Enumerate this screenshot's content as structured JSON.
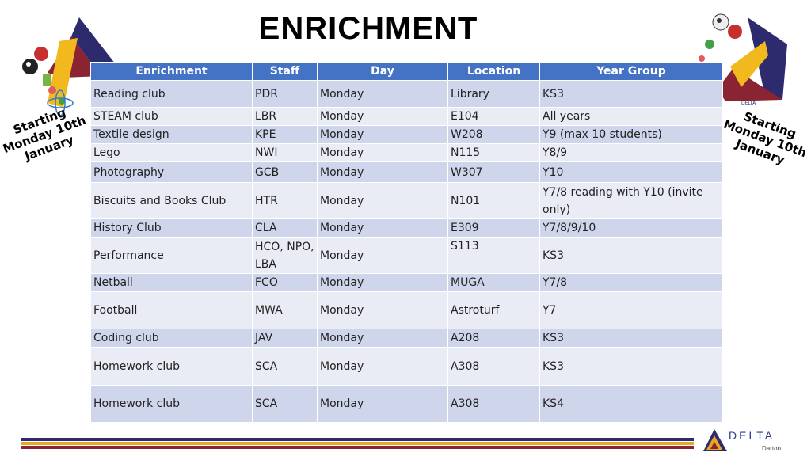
{
  "title": "ENRICHMENT",
  "starting_note": "Starting\nMonday 10th\nJanuary",
  "table": {
    "headers": [
      "Enrichment",
      "Staff",
      "Day",
      "Location",
      "Year Group"
    ],
    "rows": [
      [
        "Reading club",
        "PDR",
        "Monday",
        "Library",
        "KS3"
      ],
      [
        "STEAM club",
        "LBR",
        "Monday",
        "E104",
        "All years"
      ],
      [
        "Textile design",
        "KPE",
        "Monday",
        "W208",
        "Y9 (max 10 students)"
      ],
      [
        "Lego",
        "NWI",
        "Monday",
        "N115",
        "Y8/9"
      ],
      [
        "Photography",
        "GCB",
        "Monday",
        "W307",
        "Y10"
      ],
      [
        "Biscuits and Books Club",
        "HTR",
        "Monday",
        "N101",
        "Y7/8 reading with Y10 (invite only)"
      ],
      [
        "History Club",
        "CLA",
        "Monday",
        "E309",
        "Y7/8/9/10"
      ],
      [
        "Performance",
        "HCO, NPO, LBA",
        "Monday",
        "S113",
        "KS3"
      ],
      [
        "Netball",
        "FCO",
        "Monday",
        "MUGA",
        "Y7/8"
      ],
      [
        "Football",
        "MWA",
        "Monday",
        "Astroturf",
        "Y7"
      ],
      [
        "Coding club",
        "JAV",
        "Monday",
        "A208",
        "KS3"
      ],
      [
        "Homework club",
        "SCA",
        "Monday",
        "A308",
        "KS3"
      ],
      [
        "Homework club",
        "SCA",
        "Monday",
        "A308",
        "KS4"
      ]
    ]
  },
  "logo": {
    "word": "DELTA",
    "sub": "Darton"
  },
  "colors": {
    "header_blue": "#4472c4",
    "row_dark": "#cfd5ea",
    "row_light": "#e9ebf5",
    "stripe_navy": "#2e2a6e",
    "stripe_gold": "#e8a822",
    "stripe_maroon": "#8a2432"
  }
}
